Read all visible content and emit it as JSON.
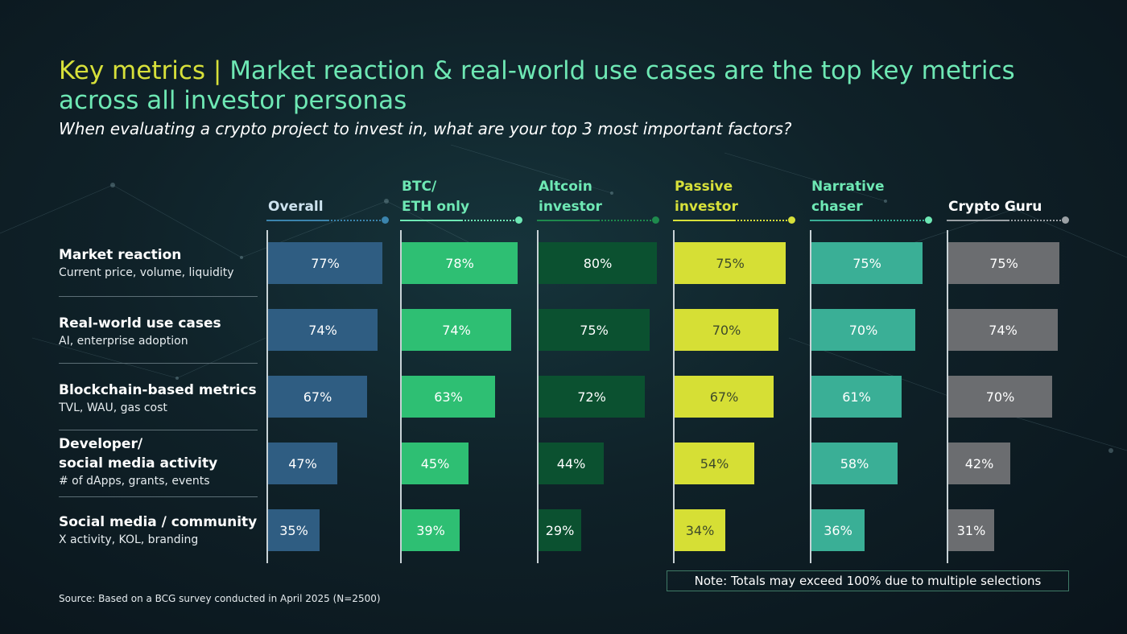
{
  "header": {
    "title_lead": "Key metrics | ",
    "title_rest": "Market reaction & real-world use cases are the top key metrics across all investor personas",
    "subtitle": "When evaluating a crypto project to invest in, what are your top 3 most important factors?"
  },
  "chart_data": {
    "type": "bar",
    "orientation": "horizontal",
    "value_format": "percent",
    "categories": [
      {
        "title": "Market reaction",
        "subtitle": "Current price, volume, liquidity"
      },
      {
        "title": "Real-world use cases",
        "subtitle": "AI, enterprise adoption"
      },
      {
        "title": "Blockchain-based metrics",
        "subtitle": "TVL, WAU, gas cost"
      },
      {
        "title": "Developer/\nsocial media activity",
        "subtitle": "# of dApps, grants, events"
      },
      {
        "title": "Social media / community",
        "subtitle": "X activity, KOL, branding"
      }
    ],
    "series": [
      {
        "name": "Overall",
        "color": "#2f5d82",
        "text_color": "#ffffff",
        "values": [
          77,
          74,
          67,
          47,
          35
        ]
      },
      {
        "name": "BTC/\nETH only",
        "color": "#2ebf73",
        "text_color": "#ffffff",
        "values": [
          78,
          74,
          63,
          45,
          39
        ]
      },
      {
        "name": "Altcoin\ninvestor",
        "color": "#0b5130",
        "text_color": "#ffffff",
        "values": [
          80,
          75,
          72,
          44,
          29
        ]
      },
      {
        "name": "Passive\ninvestor",
        "color": "#d6df35",
        "text_color": "#3d4a2a",
        "values": [
          75,
          70,
          67,
          54,
          34
        ]
      },
      {
        "name": "Narrative\nchaser",
        "color": "#3aaf96",
        "text_color": "#ffffff",
        "values": [
          75,
          70,
          61,
          58,
          36
        ]
      },
      {
        "name": "Crypto Guru",
        "color": "#6b6d70",
        "text_color": "#ffffff",
        "values": [
          75,
          74,
          70,
          42,
          31
        ]
      }
    ],
    "header_colors": [
      "#cde2ee",
      "#6ee8b4",
      "#6ee8b4",
      "#d7e03a",
      "#6ee8b4",
      "#ffffff"
    ],
    "line_colors": [
      "#3b84ad",
      "#6ee8b4",
      "#1e8a4d",
      "#d7e03a",
      "#3aaf96",
      "#9aa0a4"
    ],
    "dot_colors": [
      "#3b84ad",
      "#6ee8b4",
      "#1e8a4d",
      "#d7e03a",
      "#6ee8b4",
      "#9aa0a4"
    ]
  },
  "note": "Note: Totals may exceed 100% due to multiple selections",
  "source": "Source: Based on a BCG survey conducted in April 2025 (N=2500)"
}
